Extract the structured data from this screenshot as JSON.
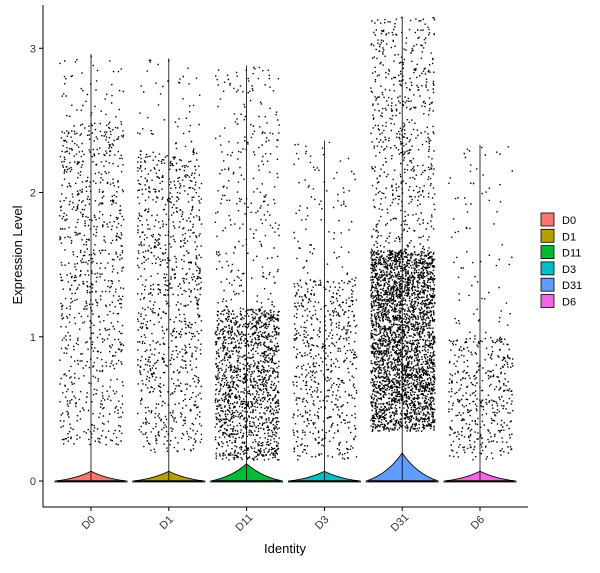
{
  "chart_data": {
    "type": "violin",
    "title": "",
    "xlabel": "Identity",
    "ylabel": "Expression Level",
    "ylim": [
      -0.18,
      3.3
    ],
    "yticks": [
      0,
      1,
      2,
      3
    ],
    "grid": false,
    "legend_position": "right",
    "categories": [
      "D0",
      "D1",
      "D11",
      "D3",
      "D31",
      "D6"
    ],
    "colors": [
      "#F8766D",
      "#B79F00",
      "#00BA38",
      "#00BFC4",
      "#619CFF",
      "#F564E3"
    ],
    "max_values": [
      2.96,
      2.93,
      2.88,
      2.36,
      3.22,
      2.33
    ],
    "zero_density": [
      0.35,
      0.35,
      0.62,
      0.35,
      1.0,
      0.35
    ],
    "nonzero_point_counts": [
      900,
      1000,
      1700,
      700,
      3800,
      500
    ],
    "point_distributions": [
      {
        "low": 0.25,
        "high": 2.5
      },
      {
        "low": 0.2,
        "high": 2.3
      },
      {
        "low": 0.15,
        "high": 1.2
      },
      {
        "low": 0.15,
        "high": 1.4
      },
      {
        "low": 0.35,
        "high": 1.6
      },
      {
        "low": 0.15,
        "high": 1.0
      }
    ]
  }
}
